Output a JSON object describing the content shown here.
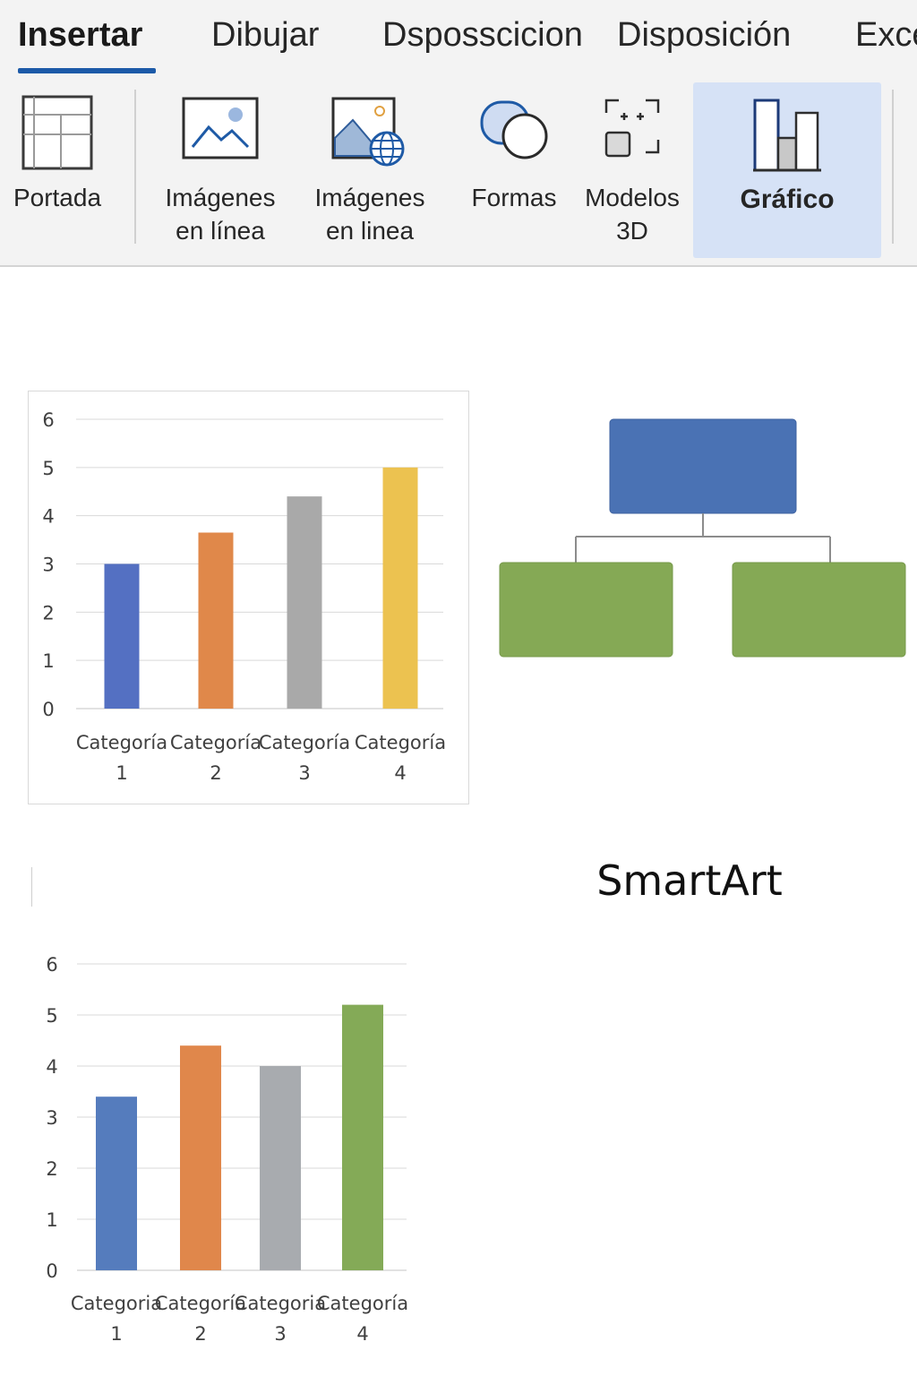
{
  "ribbon": {
    "tabs": [
      {
        "label": "Insertar",
        "active": true
      },
      {
        "label": "Dibujar"
      },
      {
        "label": "Dsposscicion"
      },
      {
        "label": "Disposición"
      },
      {
        "label": "Exce"
      }
    ],
    "groups": [
      {
        "label": "Portada",
        "icon": "table-icon"
      },
      {
        "label_line1": "Imágenes",
        "label_line2": "en línea",
        "icon": "picture-icon"
      },
      {
        "label_line1": "Imágenes",
        "label_line2": "en linea",
        "icon": "online-picture-icon"
      },
      {
        "label": "Formas",
        "icon": "shapes-icon"
      },
      {
        "label_line1": "Modelos",
        "label_line2": "3D",
        "icon": "3d-models-icon"
      },
      {
        "label": "Gráfico",
        "icon": "chart-icon",
        "selected": true
      }
    ]
  },
  "document": {
    "smartart_title": "SmartArt"
  },
  "colors": {
    "accent": "#1c5aa8",
    "selected_group_bg": "#d6e2f6",
    "smartart_top": "#4a72b4",
    "smartart_child": "#85a955"
  },
  "chart_data": [
    {
      "type": "bar",
      "categories": [
        [
          "Categoría",
          "1"
        ],
        [
          "Categoría",
          "2"
        ],
        [
          "Categoría",
          "3"
        ],
        [
          "Categoría",
          "4"
        ]
      ],
      "values": [
        3,
        3.65,
        4.4,
        5
      ],
      "colors": [
        "#5470c2",
        "#e0884a",
        "#a9a9a9",
        "#ecc250"
      ],
      "ylim": [
        0,
        6
      ],
      "yticks": [
        0,
        1,
        2,
        3,
        4,
        5,
        6
      ],
      "grid": true
    },
    {
      "type": "bar",
      "categories": [
        [
          "Categoria",
          "1"
        ],
        [
          "Categoría",
          "2"
        ],
        [
          "Categoria",
          "3"
        ],
        [
          "Categoría",
          "4"
        ]
      ],
      "values": [
        3.4,
        4.4,
        4,
        5.2
      ],
      "colors": [
        "#557cbd",
        "#e0874b",
        "#a8abaf",
        "#84aa57"
      ],
      "ylim": [
        0,
        6
      ],
      "yticks": [
        0,
        1,
        2,
        3,
        4,
        5,
        6
      ],
      "grid": true
    }
  ]
}
